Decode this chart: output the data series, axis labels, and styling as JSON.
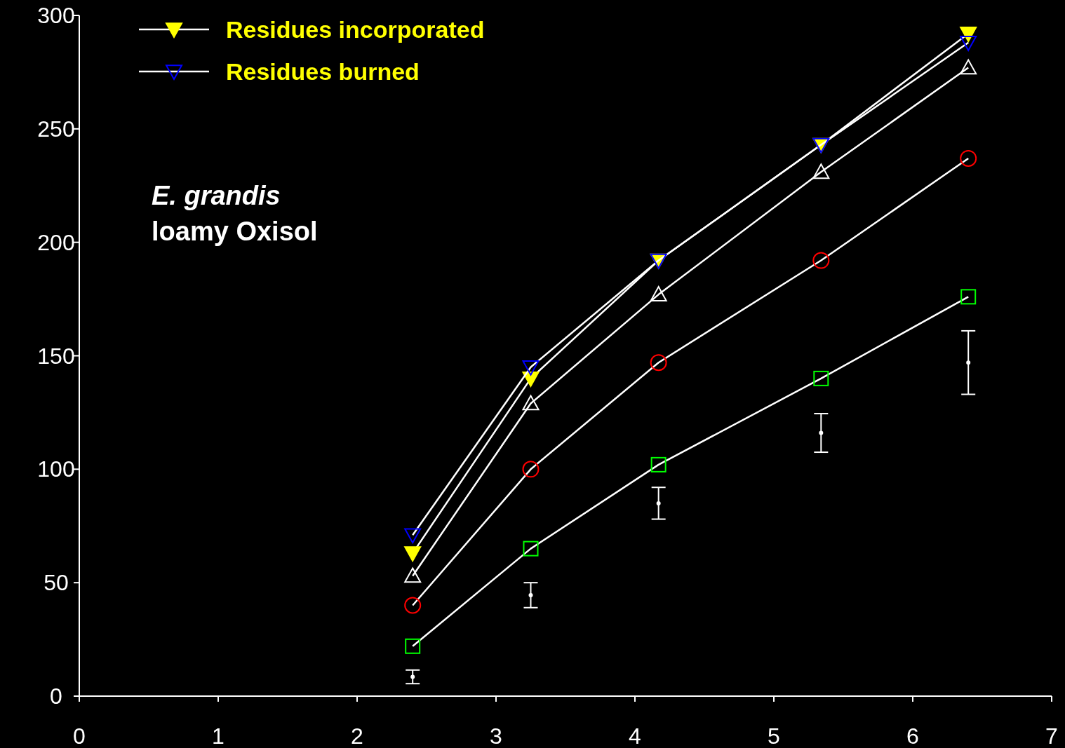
{
  "chart_data": {
    "type": "line",
    "annotations": [
      "E. grandis",
      "loamy Oxisol"
    ],
    "xlim": [
      0,
      7
    ],
    "xticks": [
      0,
      1,
      2,
      3,
      4,
      5,
      6,
      7
    ],
    "ylim": [
      0,
      300
    ],
    "yticks": [
      0,
      50,
      100,
      150,
      200,
      250,
      300
    ],
    "legend": "top left",
    "grid": false,
    "series": [
      {
        "name": "Residues incorporated",
        "color": "#ffff00",
        "marker": "triangle_down",
        "x": [
          2.4,
          3.25,
          4.17,
          5.34,
          6.4
        ],
        "values": [
          63,
          140,
          192,
          243,
          292
        ]
      },
      {
        "name": "Residues burned",
        "color": "#0000ff",
        "marker": "triangle_down",
        "x": [
          2.4,
          3.25,
          4.17,
          5.34,
          6.4
        ],
        "values": [
          71,
          145,
          192,
          243,
          288
        ]
      },
      {
        "color": "#ffffff",
        "marker": "triangle",
        "x": [
          2.4,
          3.25,
          4.17,
          5.34,
          6.4
        ],
        "values": [
          53,
          129,
          177,
          231,
          277
        ]
      },
      {
        "color": "#ff0000",
        "marker": "circle",
        "x": [
          2.4,
          3.25,
          4.17,
          5.34,
          6.4
        ],
        "values": [
          40,
          100,
          147,
          192,
          237
        ]
      },
      {
        "color": "#00ff00",
        "marker": "square",
        "x": [
          2.4,
          3.25,
          4.17,
          5.34,
          6.4
        ],
        "values": [
          22,
          65,
          102,
          140,
          176
        ]
      },
      {
        "type": "scatter",
        "color": "#ffffff",
        "marker": "circle",
        "x": [
          2.4,
          3.25,
          4.17,
          5.34,
          6.4
        ],
        "values": [
          8.5,
          44.5,
          85,
          116,
          147
        ],
        "errors": [
          3,
          5.5,
          7,
          8.5,
          14
        ]
      }
    ]
  }
}
